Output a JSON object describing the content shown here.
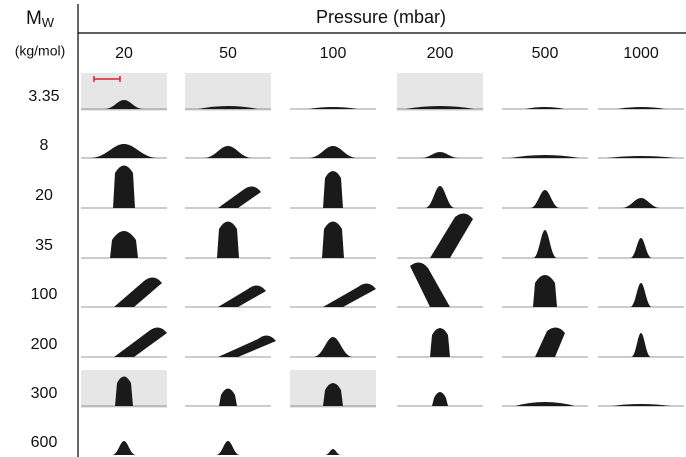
{
  "header": {
    "row_title": {
      "symbol": "M",
      "subscript": "W"
    },
    "row_unit": "(kg/mol)",
    "column_title": "Pressure (mbar)",
    "columns": [
      "20",
      "50",
      "100",
      "200",
      "500",
      "1000"
    ]
  },
  "rows": [
    "3.35",
    "8",
    "20",
    "35",
    "100",
    "200",
    "300",
    "600"
  ]
}
